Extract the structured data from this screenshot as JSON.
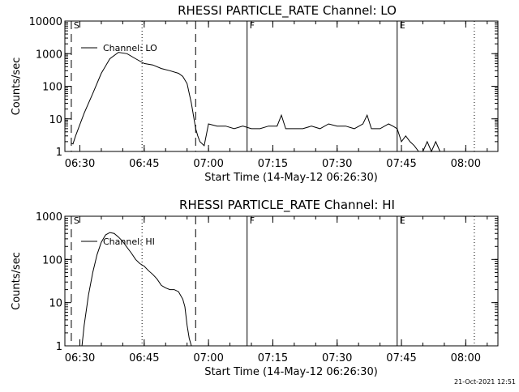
{
  "footer": {
    "timestamp": "21-Oct-2021 12:51"
  },
  "chart_data": [
    {
      "type": "line",
      "title": "RHESSI PARTICLE_RATE Channel: LO",
      "xlabel": "Start Time (14-May-12 06:26:30)",
      "ylabel": "Counts/sec",
      "y_scale": "log",
      "ylim": [
        1,
        10000
      ],
      "xlim_minutes_after_start": [
        0,
        101
      ],
      "x_tick_labels": [
        "06:30",
        "06:45",
        "07:00",
        "07:15",
        "07:30",
        "07:45",
        "08:00"
      ],
      "y_tick_labels": [
        "1",
        "10",
        "100",
        "1000",
        "10000"
      ],
      "legend": {
        "entries": [
          "Channel: LO"
        ],
        "placement": "top-left"
      },
      "markers": [
        {
          "label": "S",
          "time": "06:28",
          "style": "dashed"
        },
        {
          "label": "",
          "time": "06:44.5",
          "style": "dotted"
        },
        {
          "label": "",
          "time": "06:57",
          "style": "dashed"
        },
        {
          "label": "F",
          "time": "07:09",
          "style": "solid"
        },
        {
          "label": "E",
          "time": "07:44",
          "style": "solid"
        },
        {
          "label": "",
          "time": "08:02",
          "style": "dotted"
        }
      ],
      "series": [
        {
          "name": "Channel: LO",
          "x": [
            "06:27.9",
            "06:28.4",
            "06:29",
            "06:31",
            "06:33",
            "06:35",
            "06:37",
            "06:39",
            "06:41",
            "06:43",
            "06:45",
            "06:47",
            "06:49",
            "06:51",
            "06:53",
            "06:54",
            "06:55",
            "06:56",
            "06:57",
            "06:57.5",
            "06:58",
            "06:59",
            "07:00",
            "07:02",
            "07:04",
            "07:06",
            "07:08",
            "07:10",
            "07:12",
            "07:14",
            "07:16",
            "07:17",
            "07:18",
            "07:20",
            "07:22",
            "07:24",
            "07:26",
            "07:28",
            "07:30",
            "07:32",
            "07:34",
            "07:36",
            "07:37",
            "07:38",
            "07:40",
            "07:42",
            "07:43",
            "07:44",
            "07:45",
            "07:46",
            "07:47",
            "07:48",
            "07:49",
            "07:50",
            "07:51",
            "07:52",
            "07:53",
            "07:54"
          ],
          "y": [
            1.8,
            1.7,
            3,
            15,
            60,
            250,
            700,
            1100,
            1000,
            700,
            500,
            450,
            350,
            300,
            250,
            200,
            120,
            30,
            5,
            3,
            2,
            1.5,
            7,
            6,
            6,
            5,
            6,
            5,
            5,
            6,
            6,
            13,
            5,
            5,
            5,
            6,
            5,
            7,
            6,
            6,
            5,
            7,
            13,
            5,
            5,
            7,
            6,
            5,
            2,
            3,
            2,
            1.5,
            1,
            1,
            2,
            1,
            2,
            1
          ]
        }
      ]
    },
    {
      "type": "line",
      "title": "RHESSI PARTICLE_RATE Channel: HI",
      "xlabel": "Start Time (14-May-12 06:26:30)",
      "ylabel": "Counts/sec",
      "y_scale": "log",
      "ylim": [
        1,
        1000
      ],
      "xlim_minutes_after_start": [
        0,
        101
      ],
      "x_tick_labels": [
        "06:30",
        "06:45",
        "07:00",
        "07:15",
        "07:30",
        "07:45",
        "08:00"
      ],
      "y_tick_labels": [
        "1",
        "10",
        "100",
        "1000"
      ],
      "legend": {
        "entries": [
          "Channel: HI"
        ],
        "placement": "top-left"
      },
      "markers": [
        {
          "label": "S",
          "time": "06:28",
          "style": "dashed"
        },
        {
          "label": "",
          "time": "06:44.5",
          "style": "dotted"
        },
        {
          "label": "",
          "time": "06:57",
          "style": "dashed"
        },
        {
          "label": "F",
          "time": "07:09",
          "style": "solid"
        },
        {
          "label": "E",
          "time": "07:44",
          "style": "solid"
        },
        {
          "label": "",
          "time": "08:02",
          "style": "dotted"
        }
      ],
      "series": [
        {
          "name": "Channel: HI",
          "x": [
            "06:30.5",
            "06:31",
            "06:32",
            "06:33",
            "06:34",
            "06:35",
            "06:36",
            "06:37",
            "06:38",
            "06:39",
            "06:40",
            "06:41",
            "06:42",
            "06:43",
            "06:44",
            "06:45",
            "06:46",
            "06:47",
            "06:48",
            "06:49",
            "06:50",
            "06:51",
            "06:52",
            "06:53",
            "06:54",
            "06:54.5",
            "06:55",
            "06:55.5",
            "06:56"
          ],
          "y": [
            1,
            3,
            15,
            50,
            130,
            250,
            370,
            420,
            400,
            330,
            260,
            190,
            140,
            100,
            80,
            70,
            55,
            45,
            35,
            25,
            22,
            20,
            20,
            18,
            12,
            8,
            3,
            1.5,
            1
          ]
        }
      ]
    }
  ]
}
